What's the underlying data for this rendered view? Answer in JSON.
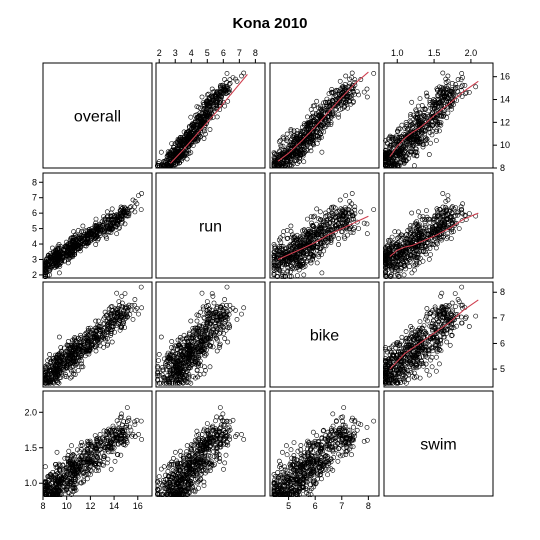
{
  "chart_data": {
    "type": "scatter",
    "subtype": "scatterplot-matrix",
    "title": "Kona 2010",
    "variables": [
      "overall",
      "run",
      "bike",
      "swim"
    ],
    "ranges": {
      "overall": [
        8.0,
        17.2
      ],
      "run": [
        1.8,
        8.6
      ],
      "bike": [
        4.3,
        8.4
      ],
      "swim": [
        0.82,
        2.3
      ]
    },
    "ticks": {
      "overall": [
        8,
        10,
        12,
        14,
        16
      ],
      "run": [
        2,
        3,
        4,
        5,
        6,
        7,
        8
      ],
      "bike": [
        5,
        6,
        7,
        8
      ],
      "swim": [
        1.0,
        1.5,
        2.0
      ]
    },
    "smoother": {
      "color": "#d04050",
      "panels": [
        "overall~run",
        "overall~bike",
        "overall~swim",
        "run~bike",
        "run~swim",
        "bike~swim"
      ],
      "curves": {
        "overall~run": {
          "x": [
            2.7,
            3.5,
            4.5,
            5.5,
            6.5,
            7.5
          ],
          "y": [
            8.4,
            9.6,
            11.2,
            12.8,
            14.5,
            16.2
          ]
        },
        "overall~bike": {
          "x": [
            4.6,
            5.0,
            5.5,
            6.0,
            6.5,
            7.0,
            7.5,
            8.0
          ],
          "y": [
            8.6,
            9.3,
            10.4,
            11.6,
            12.9,
            14.2,
            15.4,
            16.4
          ]
        },
        "overall~swim": {
          "x": [
            0.9,
            1.0,
            1.1,
            1.2,
            1.3,
            1.4,
            1.5,
            1.7,
            1.9,
            2.1
          ],
          "y": [
            9.0,
            9.9,
            10.6,
            11.1,
            11.5,
            12.0,
            12.6,
            13.6,
            14.7,
            15.6
          ]
        },
        "run~bike": {
          "x": [
            4.6,
            5.0,
            5.5,
            6.0,
            6.5,
            7.0,
            7.5,
            8.0
          ],
          "y": [
            3.0,
            3.3,
            3.7,
            4.1,
            4.6,
            5.0,
            5.4,
            5.8
          ]
        },
        "run~swim": {
          "x": [
            0.9,
            1.0,
            1.1,
            1.2,
            1.3,
            1.4,
            1.5,
            1.7,
            1.9,
            2.1
          ],
          "y": [
            3.2,
            3.6,
            3.8,
            3.9,
            4.1,
            4.3,
            4.5,
            5.0,
            5.6,
            6.0
          ]
        },
        "bike~swim": {
          "x": [
            0.9,
            1.0,
            1.1,
            1.2,
            1.3,
            1.4,
            1.5,
            1.7,
            1.9,
            2.1
          ],
          "y": [
            5.0,
            5.3,
            5.6,
            5.8,
            6.0,
            6.2,
            6.4,
            6.8,
            7.3,
            7.7
          ]
        }
      }
    },
    "n_points_approx": 1700,
    "x_axis_labels_top": [
      "run",
      "swim"
    ],
    "x_axis_labels_bottom": [
      "overall",
      "bike"
    ],
    "y_axis_labels_left": [
      "run",
      "swim"
    ],
    "y_axis_labels_right": [
      "overall",
      "bike"
    ]
  }
}
